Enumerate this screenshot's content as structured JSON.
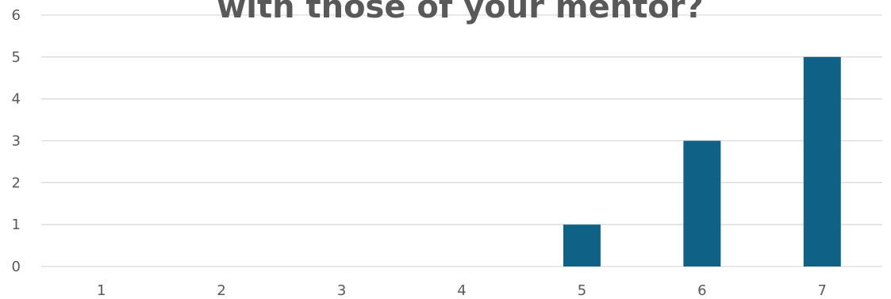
{
  "chart_data": {
    "type": "bar",
    "title": "with those of your mentor?",
    "categories": [
      "1",
      "2",
      "3",
      "4",
      "5",
      "6",
      "7"
    ],
    "values": [
      0,
      0,
      0,
      0,
      1,
      3,
      5
    ],
    "ylim": [
      0,
      6
    ],
    "yticks": [
      0,
      1,
      2,
      3,
      4,
      5,
      6
    ],
    "grid": true,
    "legend": "none",
    "bar_color": "#0f6186",
    "text_color": "#595959",
    "grid_color": "#d9d9d9"
  }
}
